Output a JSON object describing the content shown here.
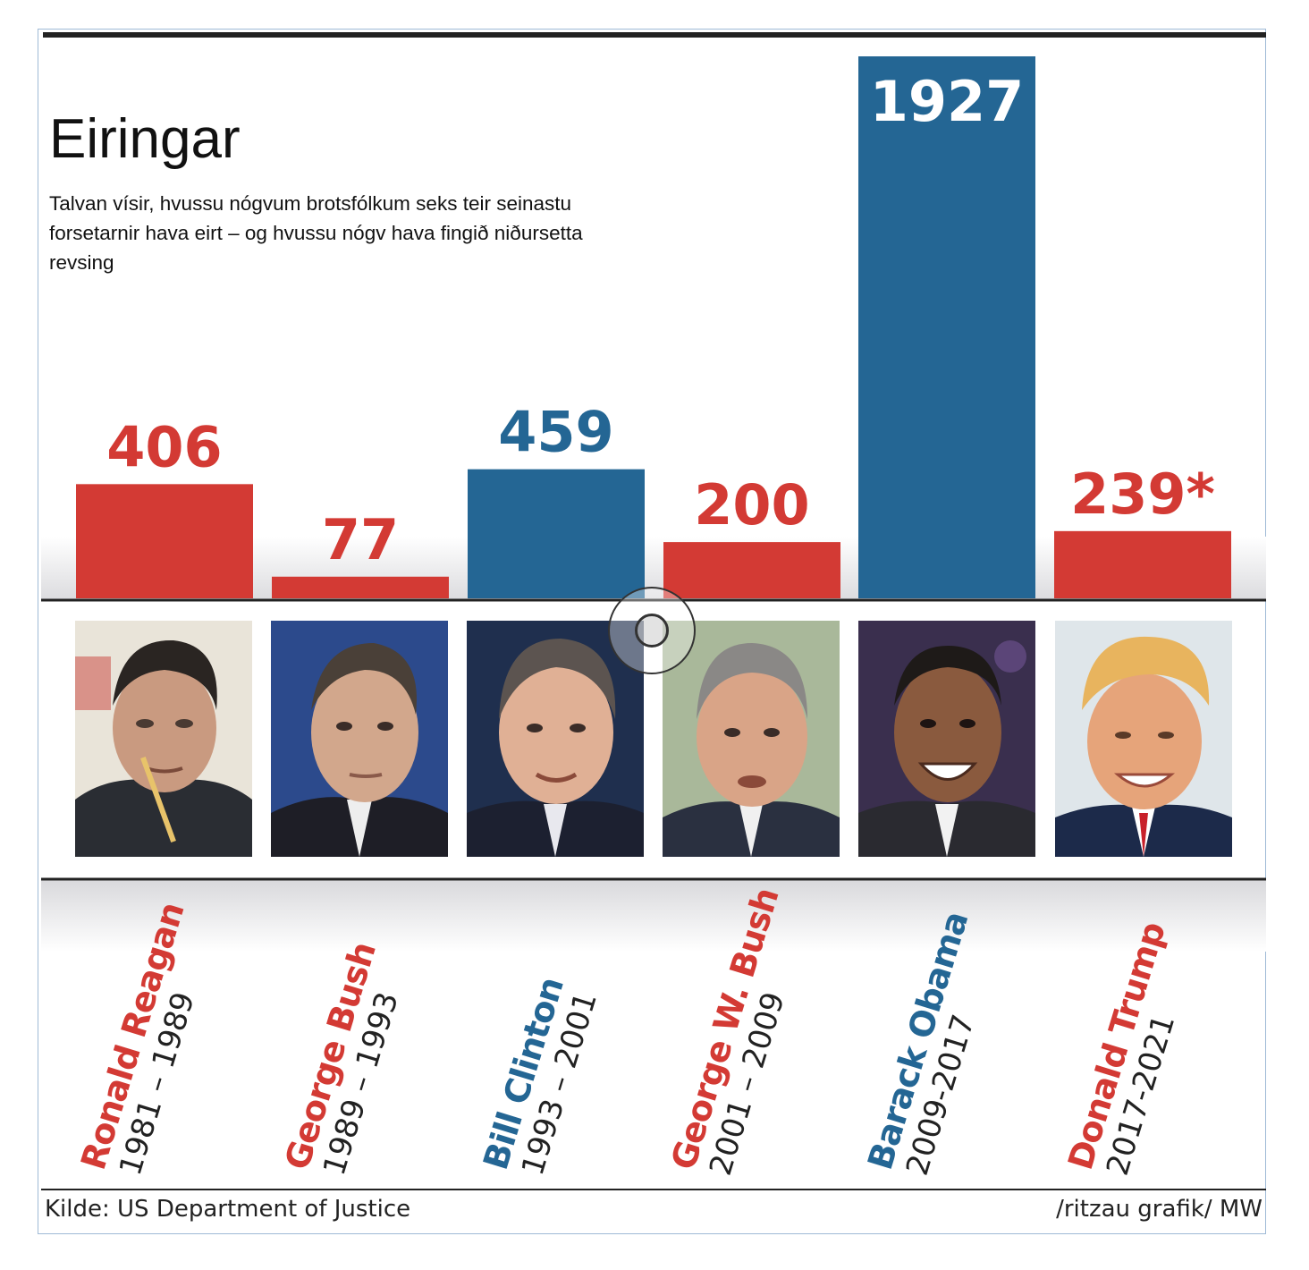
{
  "header": {
    "title": "Eiringar",
    "subtitle": "Talvan vísir, hvussu nógvum brotsfólkum seks teir seinastu forsetarnir hava eirt – og hvussu nógv hava fingið niðursetta revsing"
  },
  "colors": {
    "republican": "#d33a34",
    "democrat": "#246694",
    "axis": "#222222"
  },
  "chart_data": {
    "type": "bar",
    "title": "Eiringar",
    "subtitle": "Talvan vísir, hvussu nógvum brotsfólkum seks teir seinastu forsetarnir hava eirt – og hvussu nógv hava fingið niðursetta revsing",
    "categories": [
      "Ronald Reagan",
      "George Bush",
      "Bill Clinton",
      "George W. Bush",
      "Barack Obama",
      "Donald Trump"
    ],
    "values": [
      406,
      77,
      459,
      200,
      1927,
      239
    ],
    "value_labels": [
      "406",
      "77",
      "459",
      "200",
      "1927",
      "239*"
    ],
    "years": [
      "1981 – 1989",
      "1989 – 1993",
      "1993 – 2001",
      "2001 – 2009",
      "2009-2017",
      "2017-2021"
    ],
    "party": [
      "republican",
      "republican",
      "democrat",
      "republican",
      "democrat",
      "republican"
    ],
    "ylim": [
      0,
      1927
    ],
    "grid": false,
    "legend": "none"
  },
  "presidents": [
    {
      "name": "Ronald Reagan",
      "years": "1981 – 1989",
      "value_label": "406",
      "portrait": "reagan-portrait"
    },
    {
      "name": "George Bush",
      "years": "1989 – 1993",
      "value_label": "77",
      "portrait": "bush-sr-portrait"
    },
    {
      "name": "Bill Clinton",
      "years": "1993 – 2001",
      "value_label": "459",
      "portrait": "clinton-portrait"
    },
    {
      "name": "George W. Bush",
      "years": "2001 – 2009",
      "value_label": "200",
      "portrait": "bush-jr-portrait"
    },
    {
      "name": "Barack Obama",
      "years": "2009-2017",
      "value_label": "1927",
      "portrait": "obama-portrait"
    },
    {
      "name": "Donald Trump",
      "years": "2017-2021",
      "value_label": "239*",
      "portrait": "trump-portrait"
    }
  ],
  "footer": {
    "source": "Kilde: US Department of Justice",
    "credit": "/ritzau grafik/ MW"
  }
}
